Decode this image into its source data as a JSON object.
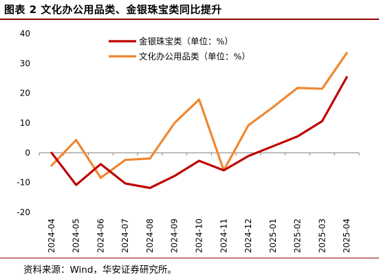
{
  "title": "图表 2  文化办公用品类、金银珠宝类同比提升",
  "source": "资料来源：Wind，华安证券研究所。",
  "chart_data": {
    "type": "line",
    "x": [
      "2024-04",
      "2024-05",
      "2024-06",
      "2024-07",
      "2024-08",
      "2024-09",
      "2024-10",
      "2024-11",
      "2024-12",
      "2025-01",
      "2025-02",
      "2025-03",
      "2025-04"
    ],
    "yticks": [
      "40",
      "30",
      "20",
      "10",
      "0",
      "-10",
      "-20"
    ],
    "ylim": [
      -20,
      40
    ],
    "grid": false,
    "legend_position": "top",
    "series": [
      {
        "name": "金银珠宝类（单位：%）",
        "color": "#c00000",
        "values": [
          0,
          -10.8,
          -3.8,
          -10.3,
          -11.8,
          -7.8,
          -2.7,
          -5.9,
          -1.1,
          2.2,
          5.5,
          10.6,
          25.4
        ]
      },
      {
        "name": "文化办公用品类（单位：%）",
        "color": "#f0862f",
        "values": [
          -4.3,
          4.3,
          -8.4,
          -2.4,
          -1.9,
          10.0,
          17.9,
          -5.9,
          9.2,
          15.3,
          21.8,
          21.5,
          33.5
        ]
      }
    ]
  }
}
